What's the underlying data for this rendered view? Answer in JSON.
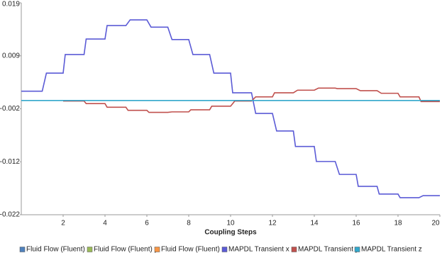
{
  "chart_data": {
    "type": "line",
    "x_label": "Coupling Steps",
    "xlim": [
      0,
      20
    ],
    "xticks": [
      2,
      4,
      6,
      8,
      10,
      12,
      14,
      16,
      18,
      20
    ],
    "ylim": [
      -0.022,
      0.019
    ],
    "yticks": [
      {
        "value": 0.019,
        "label": "0.019"
      },
      {
        "value": 0.00875,
        "label": "0.009"
      },
      {
        "value": -0.0015,
        "label": "-0.002"
      },
      {
        "value": -0.01175,
        "label": "-0.012"
      },
      {
        "value": -0.022,
        "label": "-0.022"
      }
    ],
    "grid": false,
    "legend": "bottom",
    "series": [
      {
        "name": "Fluid Flow (Fluent) x",
        "color": "#4f81bd",
        "x": [],
        "values": []
      },
      {
        "name": "Fluid Flow (Fluent) y",
        "color": "#9bbb59",
        "x": [],
        "values": []
      },
      {
        "name": "Fluid Flow (Fluent) z",
        "color": "#f79646",
        "x": [],
        "values": []
      },
      {
        "name": "MAPDL Transient x",
        "color": "#5b5bd6",
        "x": [
          0,
          1,
          1.2,
          2,
          2.1,
          3,
          3.1,
          4,
          4.1,
          5,
          5.2,
          6,
          6.2,
          7,
          7.2,
          8,
          8.2,
          9,
          9.2,
          10,
          10.1,
          11,
          11.2,
          12,
          12.2,
          13,
          13.1,
          14,
          14.1,
          15,
          15.2,
          16,
          16.1,
          17,
          17.1,
          18,
          18.1,
          19,
          19.2,
          20
        ],
        "values": [
          0.0019,
          0.0019,
          0.0054,
          0.0054,
          0.009,
          0.009,
          0.012,
          0.012,
          0.0146,
          0.0146,
          0.0157,
          0.0157,
          0.0143,
          0.0143,
          0.0119,
          0.0119,
          0.009,
          0.009,
          0.0054,
          0.0054,
          0.0016,
          0.0016,
          -0.0024,
          -0.0024,
          -0.0058,
          -0.0058,
          -0.0088,
          -0.0088,
          -0.0117,
          -0.0117,
          -0.0142,
          -0.0142,
          -0.0165,
          -0.0165,
          -0.018,
          -0.018,
          -0.0187,
          -0.0187,
          -0.0183,
          -0.0183
        ]
      },
      {
        "name": "MAPDL Transient y",
        "color": "#c0504d",
        "x": [
          2,
          3,
          3.1,
          4,
          4.1,
          5,
          5.1,
          6,
          6.1,
          7,
          7.2,
          8,
          8.1,
          9,
          9.1,
          10,
          10.2,
          11,
          11.2,
          12,
          12.1,
          13,
          13.2,
          14,
          14.2,
          15,
          15.1,
          16,
          16.2,
          17,
          17.2,
          18,
          18.1,
          19,
          19.1,
          20
        ],
        "values": [
          0,
          0,
          -0.0005,
          -0.0005,
          -0.0012,
          -0.0012,
          -0.0018,
          -0.0018,
          -0.0022,
          -0.0022,
          -0.0021,
          -0.0021,
          -0.0017,
          -0.0017,
          -0.001,
          -0.001,
          0,
          0,
          0.0008,
          0.0008,
          0.0016,
          0.0016,
          0.0021,
          0.0021,
          0.0025,
          0.0025,
          0.0024,
          0.0024,
          0.002,
          0.002,
          0.0015,
          0.0015,
          0.0008,
          0.0008,
          -0.0001,
          -0.0001
        ]
      },
      {
        "name": "MAPDL Transient z",
        "color": "#33a8cc",
        "x": [
          0,
          20
        ],
        "values": [
          0.0001,
          0.0001
        ]
      }
    ]
  }
}
